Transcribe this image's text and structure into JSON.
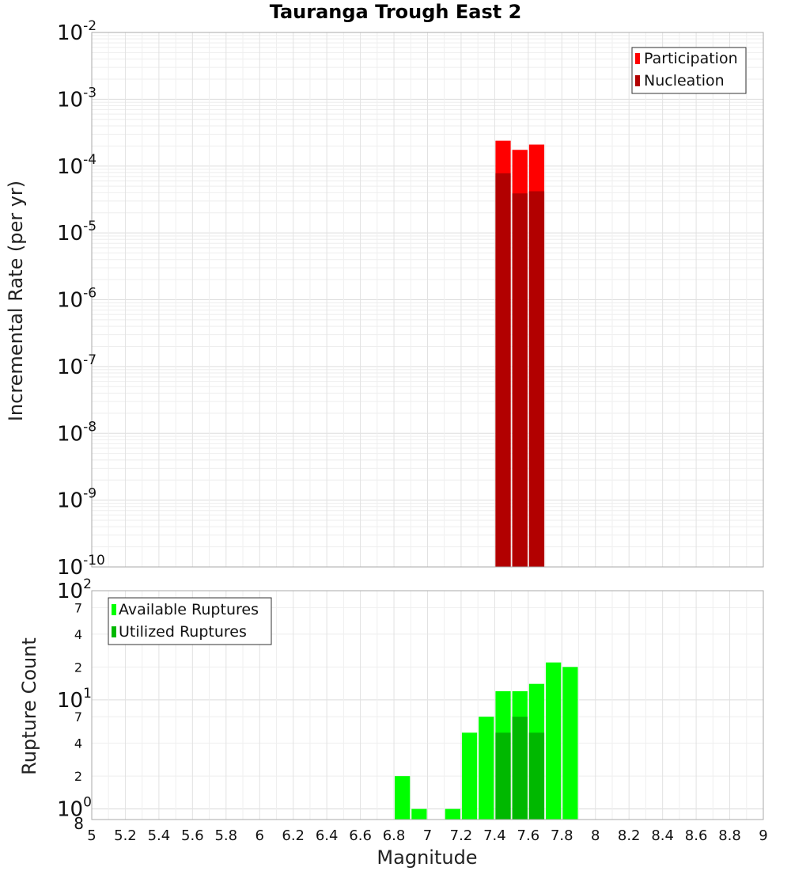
{
  "chart_data": [
    {
      "type": "bar",
      "title": "Tauranga Trough East 2",
      "ylabel": "Incremental Rate (per yr)",
      "xlim": [
        5,
        9
      ],
      "ylim": [
        1e-10,
        0.01
      ],
      "yscale": "log",
      "grid": true,
      "legend_position": "top-right",
      "y_ticks": [
        {
          "base": "10",
          "exp": "-2"
        },
        {
          "base": "10",
          "exp": "-3"
        },
        {
          "base": "10",
          "exp": "-4"
        },
        {
          "base": "10",
          "exp": "-5"
        },
        {
          "base": "10",
          "exp": "-6"
        },
        {
          "base": "10",
          "exp": "-7"
        },
        {
          "base": "10",
          "exp": "-8"
        },
        {
          "base": "10",
          "exp": "-9"
        },
        {
          "base": "10",
          "exp": "-10"
        }
      ],
      "bar_width": 0.1,
      "series": [
        {
          "name": "Participation",
          "color": "#ff0000",
          "x": [
            7.45,
            7.55,
            7.65
          ],
          "values": [
            0.00024,
            0.000175,
            0.00021
          ]
        },
        {
          "name": "Nucleation",
          "color": "#b20000",
          "x": [
            7.45,
            7.55,
            7.65
          ],
          "values": [
            7.8e-05,
            3.9e-05,
            4.2e-05
          ]
        }
      ]
    },
    {
      "type": "bar",
      "xlabel": "Magnitude",
      "ylabel": "Rupture Count",
      "xlim": [
        5,
        9
      ],
      "ylim": [
        0.8,
        100
      ],
      "yscale": "log",
      "grid": true,
      "legend_position": "top-left",
      "x_ticks": [
        "5",
        "5.2",
        "5.4",
        "5.6",
        "5.8",
        "6",
        "6.2",
        "6.4",
        "6.6",
        "6.8",
        "7",
        "7.2",
        "7.4",
        "7.6",
        "7.8",
        "8",
        "8.2",
        "8.4",
        "8.6",
        "8.8",
        "9"
      ],
      "y_ticks": [
        {
          "value": 100,
          "base": "10",
          "exp": "2",
          "major": true
        },
        {
          "value": 70,
          "label": "7"
        },
        {
          "value": 40,
          "label": "4"
        },
        {
          "value": 20,
          "label": "2"
        },
        {
          "value": 10,
          "base": "10",
          "exp": "1",
          "major": true
        },
        {
          "value": 7,
          "label": "7"
        },
        {
          "value": 4,
          "label": "4"
        },
        {
          "value": 2,
          "label": "2"
        },
        {
          "value": 1,
          "base": "10",
          "exp": "0",
          "major": true
        },
        {
          "value": 0.8,
          "label": "8"
        }
      ],
      "bar_width": 0.1,
      "series": [
        {
          "name": "Available Ruptures",
          "color": "#00ff00",
          "x": [
            6.85,
            6.95,
            7.15,
            7.25,
            7.35,
            7.45,
            7.55,
            7.65,
            7.75,
            7.85
          ],
          "values": [
            2,
            1,
            1,
            5,
            7,
            12,
            12,
            14,
            22,
            20
          ]
        },
        {
          "name": "Utilized Ruptures",
          "color": "#00b800",
          "x": [
            7.45,
            7.55,
            7.65
          ],
          "values": [
            5,
            7,
            5
          ]
        }
      ]
    }
  ]
}
